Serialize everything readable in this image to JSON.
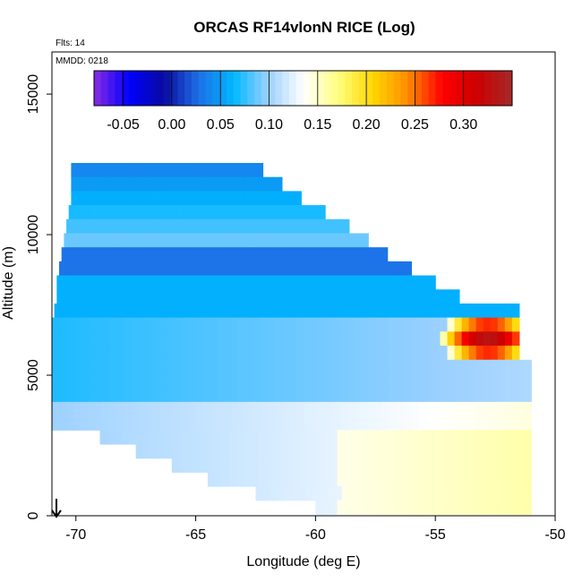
{
  "chart_data": {
    "type": "heatmap",
    "title": "ORCAS RF14vlonN RICE (Log)",
    "xlabel": "Longitude (deg E)",
    "ylabel": "Altitude (m)",
    "xlim": [
      -71,
      -50
    ],
    "ylim": [
      0,
      16500
    ],
    "x_ticks": [
      "-70",
      "-65",
      "-60",
      "-55",
      "-50"
    ],
    "y_ticks": [
      "0",
      "5000",
      "10000",
      "15000"
    ],
    "annotations": {
      "flights": "Flts: 14",
      "date": "MMDD: 0218"
    },
    "colorbar": {
      "range": [
        -0.08,
        0.35
      ],
      "ticks": [
        "-0.05",
        "0.00",
        "0.05",
        "0.10",
        "0.15",
        "0.20",
        "0.25",
        "0.30"
      ],
      "colors": [
        "#8a2be2",
        "#0000ff",
        "#0a0aa0",
        "#1e6fe6",
        "#00b7ff",
        "#9bd0ff",
        "#ffffff",
        "#ffff80",
        "#ffd700",
        "#ff8c00",
        "#ff0000",
        "#cc0000",
        "#a52a2a"
      ]
    },
    "profile_rows": [
      {
        "alt": 12300,
        "x0": -70.2,
        "x1": -62.2
      },
      {
        "alt": 11800,
        "x0": -70.2,
        "x1": -61.4
      },
      {
        "alt": 11300,
        "x0": -70.2,
        "x1": -60.6
      },
      {
        "alt": 10800,
        "x0": -70.3,
        "x1": -59.6
      },
      {
        "alt": 10300,
        "x0": -70.4,
        "x1": -58.6
      },
      {
        "alt": 9800,
        "x0": -70.5,
        "x1": -57.8
      },
      {
        "alt": 9300,
        "x0": -70.6,
        "x1": -57.0
      },
      {
        "alt": 8800,
        "x0": -70.7,
        "x1": -56.0
      },
      {
        "alt": 8300,
        "x0": -70.8,
        "x1": -55.0
      },
      {
        "alt": 7800,
        "x0": -70.8,
        "x1": -54.0
      },
      {
        "alt": 7300,
        "x0": -70.9,
        "x1": -51.5
      },
      {
        "alt": 6800,
        "x0": -71.0,
        "x1": -51.5
      },
      {
        "alt": 6300,
        "x0": -71.0,
        "x1": -51.5
      },
      {
        "alt": 5800,
        "x0": -71.0,
        "x1": -51.5
      },
      {
        "alt": 5300,
        "x0": -71.0,
        "x1": -51.0
      },
      {
        "alt": 4800,
        "x0": -71.0,
        "x1": -51.0
      },
      {
        "alt": 4300,
        "x0": -71.0,
        "x1": -51.0
      },
      {
        "alt": 3800,
        "x0": -71.0,
        "x1": -51.0
      },
      {
        "alt": 3300,
        "x0": -71.0,
        "x1": -51.0
      },
      {
        "alt": 2800,
        "x0": -69.0,
        "x1": -51.0
      },
      {
        "alt": 2300,
        "x0": -67.5,
        "x1": -51.0
      },
      {
        "alt": 1800,
        "x0": -66.0,
        "x1": -51.0
      },
      {
        "alt": 1300,
        "x0": -64.5,
        "x1": -51.0
      },
      {
        "alt": 800,
        "x0": -62.5,
        "x1": -51.0
      },
      {
        "alt": 300,
        "x0": -60.0,
        "x1": -51.0
      }
    ],
    "ice_peak": {
      "lon": -52.8,
      "alt": 6300,
      "value": 0.33
    }
  }
}
